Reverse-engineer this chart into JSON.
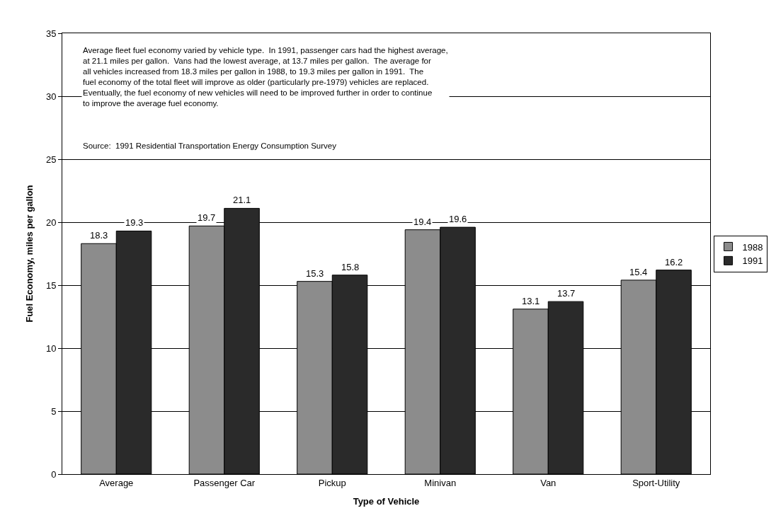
{
  "chart_data": {
    "type": "bar",
    "xlabel": "Type of Vehicle",
    "ylabel": "Fuel Economy, miles per gallon",
    "categories": [
      "Average",
      "Passenger Car",
      "Pickup",
      "Minivan",
      "Van",
      "Sport-Utility"
    ],
    "series": [
      {
        "name": "1988",
        "color": "#8c8c8c",
        "values": [
          18.3,
          19.7,
          15.3,
          19.4,
          13.1,
          15.4
        ]
      },
      {
        "name": "1991",
        "color": "#2a2a2a",
        "values": [
          19.3,
          21.1,
          15.8,
          19.6,
          13.7,
          16.2
        ]
      }
    ],
    "ylim": [
      0,
      35
    ],
    "yticks": [
      0,
      5,
      10,
      15,
      20,
      25,
      30,
      35
    ],
    "grid": "y",
    "legend": "right",
    "data_labels": true,
    "annotations": [
      "Average fleet fuel economy varied by vehicle type.  In 1991, passenger cars had the highest average, at 21.1 miles per gallon.  Vans had the lowest average, at 13.7 miles per gallon.  The average for all vehicles increased from 18.3 miles per gallon in 1988, to 19.3 miles per gallon in 1991.  The fuel economy of the total fleet will improve as older (particularly pre-1979) vehicles are replaced.  Eventually, the fuel economy of new vehicles will need to be improved further in order to continue to improve the average fuel economy.",
      "Source:  1991 Residential Transportation Energy Consumption Survey"
    ]
  }
}
